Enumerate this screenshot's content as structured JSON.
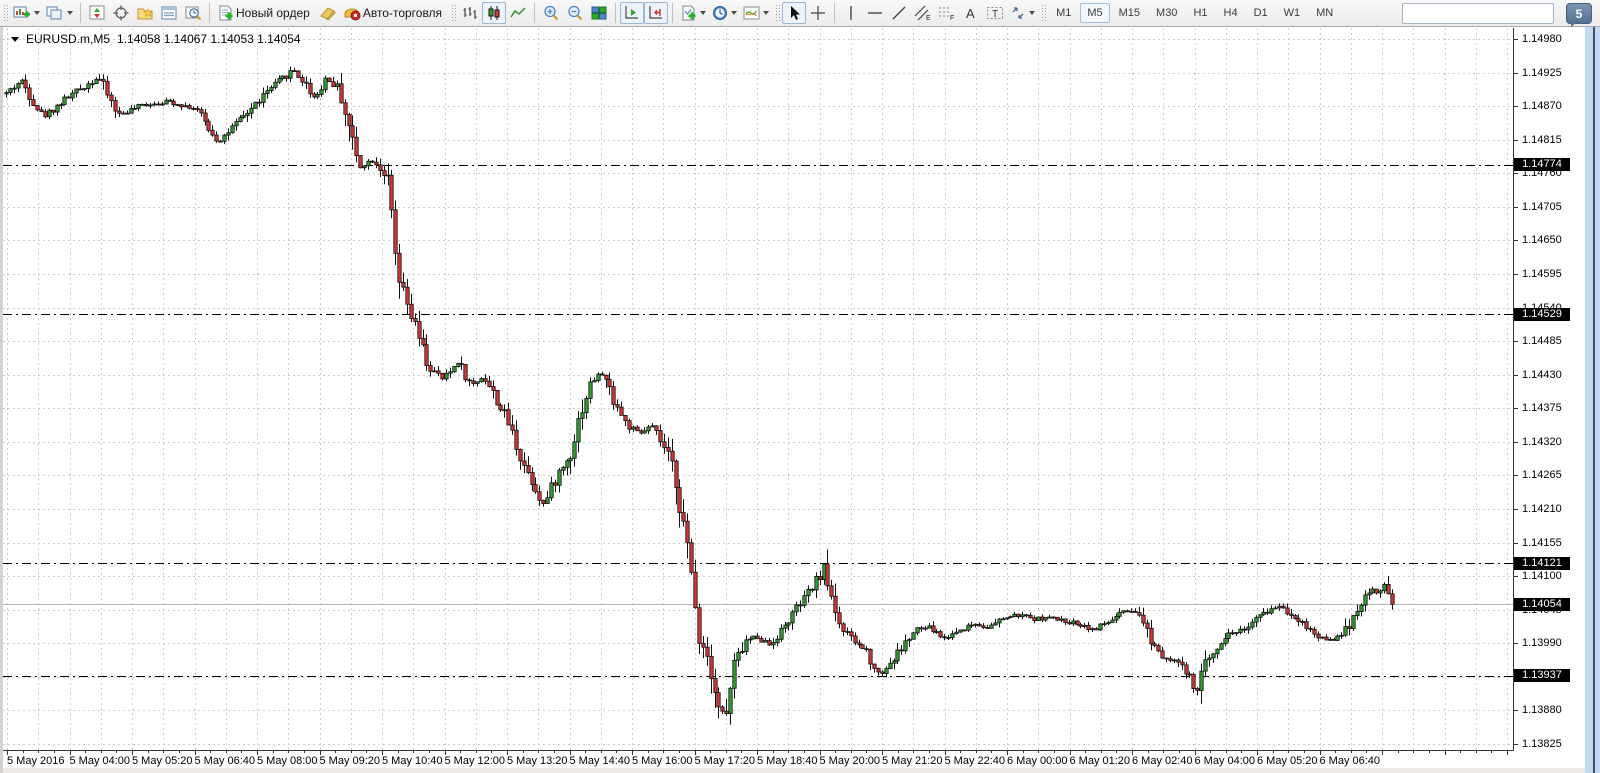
{
  "toolbar": {
    "new_order_label": "Новый ордер",
    "auto_trading_label": "Авто-торговля",
    "chat_badge": "5",
    "search_placeholder": "",
    "search_value": "",
    "timeframes": [
      {
        "label": "M1",
        "active": false
      },
      {
        "label": "M5",
        "active": true
      },
      {
        "label": "M15",
        "active": false
      },
      {
        "label": "M30",
        "active": false
      },
      {
        "label": "H1",
        "active": false
      },
      {
        "label": "H4",
        "active": false
      },
      {
        "label": "D1",
        "active": false
      },
      {
        "label": "W1",
        "active": false
      },
      {
        "label": "MN",
        "active": false
      }
    ]
  },
  "chart": {
    "symbol_period": "EURUSD.m,M5",
    "ohlc_text": "1.14058 1.14067 1.14053 1.14054"
  },
  "chart_data": {
    "type": "candlestick",
    "symbol": "EURUSD.m",
    "timeframe": "M5",
    "open": "1.14058",
    "high": "1.14067",
    "low": "1.14053",
    "close": "1.14054",
    "y_axis": {
      "max": 1.1498,
      "min": 1.13825,
      "tick_step": 0.00055,
      "ticks": [
        "1.14980",
        "1.14925",
        "1.14870",
        "1.14815",
        "1.14760",
        "1.14705",
        "1.14650",
        "1.14595",
        "1.14540",
        "1.14485",
        "1.14430",
        "1.14375",
        "1.14320",
        "1.14265",
        "1.14210",
        "1.14155",
        "1.14100",
        "1.14045",
        "1.13990",
        "1.13935",
        "1.13880",
        "1.13825"
      ]
    },
    "x_axis": {
      "labels": [
        "5 May 2016",
        "5 May 04:00",
        "5 May 05:20",
        "5 May 06:40",
        "5 May 08:00",
        "5 May 09:20",
        "5 May 10:40",
        "5 May 12:00",
        "5 May 13:20",
        "5 May 14:40",
        "5 May 16:00",
        "5 May 17:20",
        "5 May 18:40",
        "5 May 20:00",
        "5 May 21:20",
        "5 May 22:40",
        "6 May 00:00",
        "6 May 01:20",
        "6 May 02:40",
        "6 May 04:00",
        "6 May 05:20",
        "6 May 06:40"
      ]
    },
    "price_markers": [
      {
        "text": "1.14774",
        "price": 1.14774,
        "line": "dashdot"
      },
      {
        "text": "1.14529",
        "price": 1.14529,
        "line": "dashdot"
      },
      {
        "text": "1.14121",
        "price": 1.14121,
        "line": "dashdot"
      },
      {
        "text": "1.14054",
        "price": 1.14054,
        "line": "current"
      },
      {
        "text": "1.13937",
        "price": 1.13937,
        "line": "dashdot"
      }
    ],
    "price_path": [
      [
        2,
        1.1489
      ],
      [
        18,
        1.14912
      ],
      [
        40,
        1.14852
      ],
      [
        62,
        1.14882
      ],
      [
        95,
        1.14918
      ],
      [
        115,
        1.14856
      ],
      [
        140,
        1.14872
      ],
      [
        165,
        1.14878
      ],
      [
        192,
        1.14866
      ],
      [
        215,
        1.14812
      ],
      [
        240,
        1.14852
      ],
      [
        265,
        1.14896
      ],
      [
        290,
        1.1493
      ],
      [
        302,
        1.14906
      ],
      [
        312,
        1.14882
      ],
      [
        322,
        1.14916
      ],
      [
        336,
        1.14898
      ],
      [
        348,
        1.1482
      ],
      [
        356,
        1.14772
      ],
      [
        370,
        1.14782
      ],
      [
        382,
        1.14758
      ],
      [
        386,
        1.14732
      ],
      [
        394,
        1.1459
      ],
      [
        404,
        1.14542
      ],
      [
        413,
        1.14502
      ],
      [
        425,
        1.14442
      ],
      [
        440,
        1.14422
      ],
      [
        455,
        1.14452
      ],
      [
        468,
        1.14412
      ],
      [
        480,
        1.14428
      ],
      [
        492,
        1.14392
      ],
      [
        505,
        1.14352
      ],
      [
        518,
        1.14292
      ],
      [
        530,
        1.14252
      ],
      [
        541,
        1.14216
      ],
      [
        553,
        1.14262
      ],
      [
        566,
        1.14295
      ],
      [
        578,
        1.14372
      ],
      [
        589,
        1.14422
      ],
      [
        599,
        1.14432
      ],
      [
        611,
        1.14388
      ],
      [
        623,
        1.14348
      ],
      [
        636,
        1.14332
      ],
      [
        648,
        1.14346
      ],
      [
        660,
        1.14312
      ],
      [
        671,
        1.14272
      ],
      [
        681,
        1.14178
      ],
      [
        689,
        1.14092
      ],
      [
        696,
        1.14002
      ],
      [
        706,
        1.13962
      ],
      [
        716,
        1.13882
      ],
      [
        723,
        1.13872
      ],
      [
        731,
        1.13952
      ],
      [
        741,
        1.13992
      ],
      [
        753,
        1.14002
      ],
      [
        766,
        1.13988
      ],
      [
        779,
        1.14012
      ],
      [
        791,
        1.14042
      ],
      [
        801,
        1.14062
      ],
      [
        813,
        1.14092
      ],
      [
        821,
        1.14116
      ],
      [
        829,
        1.14062
      ],
      [
        839,
        1.14012
      ],
      [
        851,
        1.13992
      ],
      [
        863,
        1.13978
      ],
      [
        876,
        1.13938
      ],
      [
        889,
        1.13962
      ],
      [
        901,
        1.13988
      ],
      [
        913,
        1.14012
      ],
      [
        926,
        1.14016
      ],
      [
        941,
        1.13998
      ],
      [
        956,
        1.14012
      ],
      [
        971,
        1.14022
      ],
      [
        986,
        1.14016
      ],
      [
        1001,
        1.14032
      ],
      [
        1016,
        1.14036
      ],
      [
        1031,
        1.1403
      ],
      [
        1046,
        1.14032
      ],
      [
        1061,
        1.14026
      ],
      [
        1076,
        1.14022
      ],
      [
        1091,
        1.14012
      ],
      [
        1106,
        1.14026
      ],
      [
        1121,
        1.14042
      ],
      [
        1136,
        1.14036
      ],
      [
        1149,
        1.13992
      ],
      [
        1161,
        1.13968
      ],
      [
        1173,
        1.13962
      ],
      [
        1186,
        1.13932
      ],
      [
        1193,
        1.13908
      ],
      [
        1201,
        1.13952
      ],
      [
        1213,
        1.13986
      ],
      [
        1226,
        1.14006
      ],
      [
        1239,
        1.14012
      ],
      [
        1251,
        1.14026
      ],
      [
        1263,
        1.14042
      ],
      [
        1276,
        1.14052
      ],
      [
        1289,
        1.14036
      ],
      [
        1301,
        1.14022
      ],
      [
        1313,
        1.14002
      ],
      [
        1326,
        1.13996
      ],
      [
        1339,
        1.14002
      ],
      [
        1349,
        1.14032
      ],
      [
        1359,
        1.14062
      ],
      [
        1369,
        1.14078
      ],
      [
        1376,
        1.14072
      ],
      [
        1383,
        1.14088
      ],
      [
        1389,
        1.14054
      ]
    ],
    "bar_step": 3.893,
    "colors": {
      "up": "#2f9e2f",
      "down": "#d23535",
      "wick": "#111111",
      "grid": "#cdcdcd",
      "level_line": "#000000",
      "current_line": "#b4b4b4",
      "marker_bg": "#000000",
      "marker_fg": "#ffffff",
      "background": "#ffffff"
    }
  }
}
